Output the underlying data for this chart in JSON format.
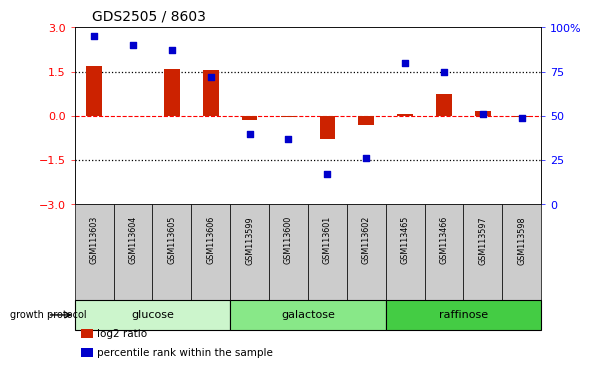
{
  "title": "GDS2505 / 8603",
  "samples": [
    "GSM113603",
    "GSM113604",
    "GSM113605",
    "GSM113606",
    "GSM113599",
    "GSM113600",
    "GSM113601",
    "GSM113602",
    "GSM113465",
    "GSM113466",
    "GSM113597",
    "GSM113598"
  ],
  "log2_ratio": [
    1.7,
    0.0,
    1.6,
    1.55,
    -0.15,
    -0.05,
    -0.8,
    -0.3,
    0.05,
    0.75,
    0.15,
    -0.05
  ],
  "percentile_rank": [
    95,
    90,
    87,
    72,
    40,
    37,
    17,
    26,
    80,
    75,
    51,
    49
  ],
  "groups": [
    {
      "label": "glucose",
      "start": 0,
      "end": 4,
      "color": "#ccf5cc"
    },
    {
      "label": "galactose",
      "start": 4,
      "end": 8,
      "color": "#88e888"
    },
    {
      "label": "raffinose",
      "start": 8,
      "end": 12,
      "color": "#44cc44"
    }
  ],
  "bar_color": "#cc2200",
  "dot_color": "#0000cc",
  "ylim_left": [
    -3,
    3
  ],
  "ylim_right": [
    0,
    100
  ],
  "yticks_left": [
    -3,
    -1.5,
    0,
    1.5,
    3
  ],
  "yticks_right": [
    0,
    25,
    50,
    75,
    100
  ],
  "growth_protocol_label": "growth protocol",
  "legend_items": [
    {
      "label": "log2 ratio",
      "color": "#cc2200"
    },
    {
      "label": "percentile rank within the sample",
      "color": "#0000cc"
    }
  ]
}
